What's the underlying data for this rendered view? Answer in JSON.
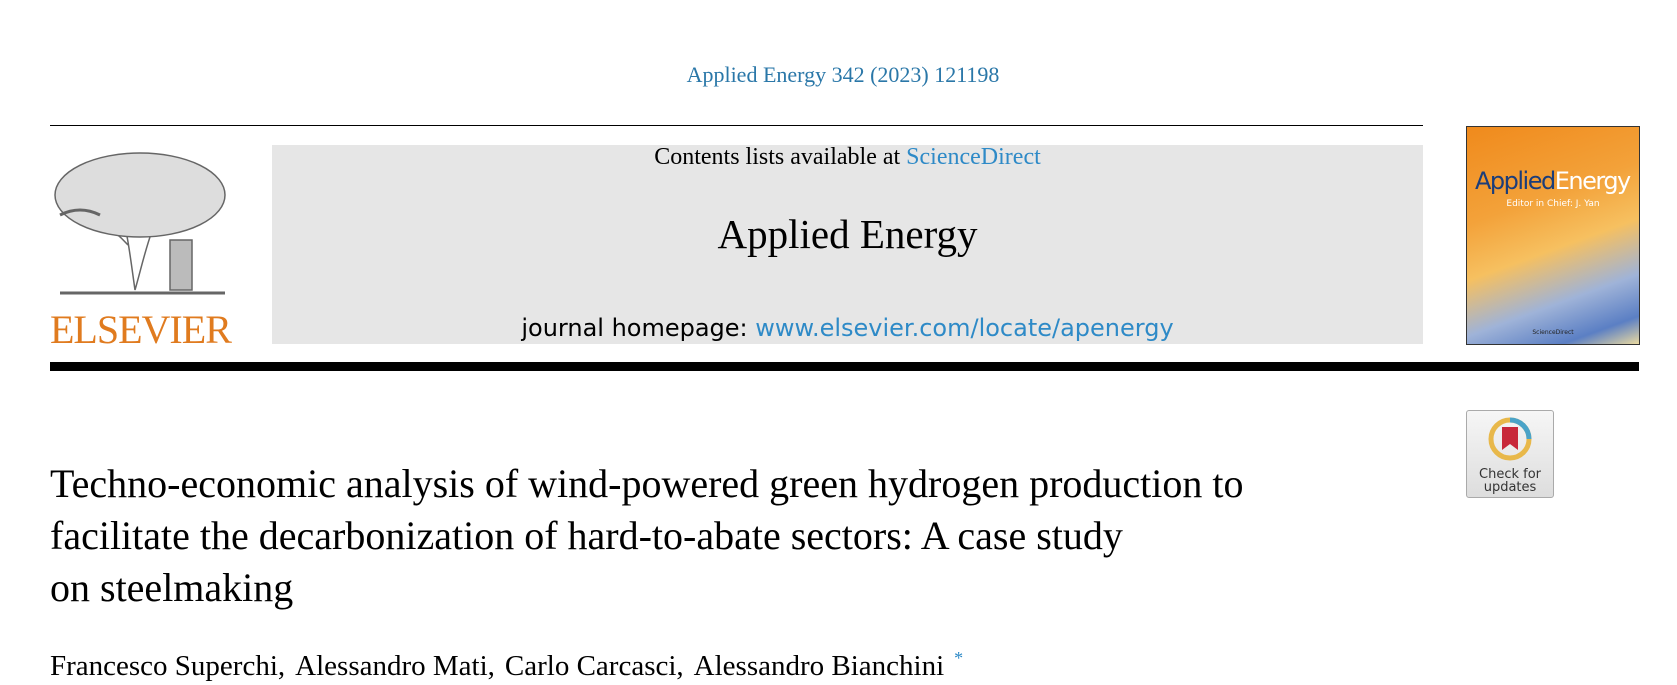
{
  "header": {
    "citation": "Applied Energy 342 (2023) 121198",
    "contents_prefix": "Contents lists available at",
    "contents_link": "ScienceDirect",
    "journal": "Applied Energy",
    "homepage_prefix": "journal homepage:",
    "homepage_url": "www.elsevier.com/locate/apenergy"
  },
  "logo": {
    "publisher": "ELSEVIER"
  },
  "cover": {
    "title_a": "Applied",
    "title_b": "Energy",
    "editor": "Editor in Chief: J. Yan",
    "footer": "ScienceDirect"
  },
  "badge": {
    "line1": "Check for",
    "line2": "updates"
  },
  "article": {
    "title_lines": [
      "Techno-economic analysis of wind-powered green hydrogen production to",
      "facilitate the decarbonization of hard-to-abate sectors: A case study",
      "on steelmaking"
    ],
    "authors": [
      "Francesco Superchi,",
      "Alessandro Mati,",
      "Carlo Carcasci,",
      "Alessandro Bianchini"
    ],
    "corresponding_mark": "*"
  }
}
